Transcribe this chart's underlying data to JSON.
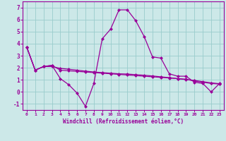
{
  "xlabel": "Windchill (Refroidissement éolien,°C)",
  "bg_color": "#cce8e8",
  "line_color": "#990099",
  "grid_color": "#99cccc",
  "x_hours": [
    0,
    1,
    2,
    3,
    4,
    5,
    6,
    7,
    8,
    9,
    10,
    11,
    12,
    13,
    14,
    15,
    16,
    17,
    18,
    19,
    20,
    21,
    22,
    23
  ],
  "series1": [
    3.7,
    1.8,
    2.1,
    2.2,
    1.1,
    0.6,
    -0.1,
    -1.2,
    0.7,
    4.4,
    5.2,
    6.8,
    6.8,
    5.9,
    4.6,
    2.9,
    2.8,
    1.5,
    1.3,
    1.3,
    0.8,
    0.7,
    0.0,
    0.7
  ],
  "series2": [
    3.7,
    1.8,
    2.1,
    2.2,
    1.8,
    1.75,
    1.7,
    1.65,
    1.6,
    1.55,
    1.5,
    1.45,
    1.4,
    1.35,
    1.3,
    1.25,
    1.2,
    1.15,
    1.1,
    1.05,
    0.9,
    0.8,
    0.7,
    0.65
  ],
  "series3": [
    3.7,
    1.8,
    2.1,
    2.1,
    1.95,
    1.88,
    1.8,
    1.72,
    1.65,
    1.6,
    1.55,
    1.5,
    1.48,
    1.43,
    1.38,
    1.32,
    1.25,
    1.18,
    1.1,
    1.02,
    0.95,
    0.85,
    0.75,
    0.68
  ],
  "ylim": [
    -1.5,
    7.5
  ],
  "yticks": [
    -1,
    0,
    1,
    2,
    3,
    4,
    5,
    6,
    7
  ],
  "xlim": [
    -0.5,
    23.5
  ],
  "xticks": [
    0,
    1,
    2,
    3,
    4,
    5,
    6,
    7,
    8,
    9,
    10,
    11,
    12,
    13,
    14,
    15,
    16,
    17,
    18,
    19,
    20,
    21,
    22,
    23
  ]
}
